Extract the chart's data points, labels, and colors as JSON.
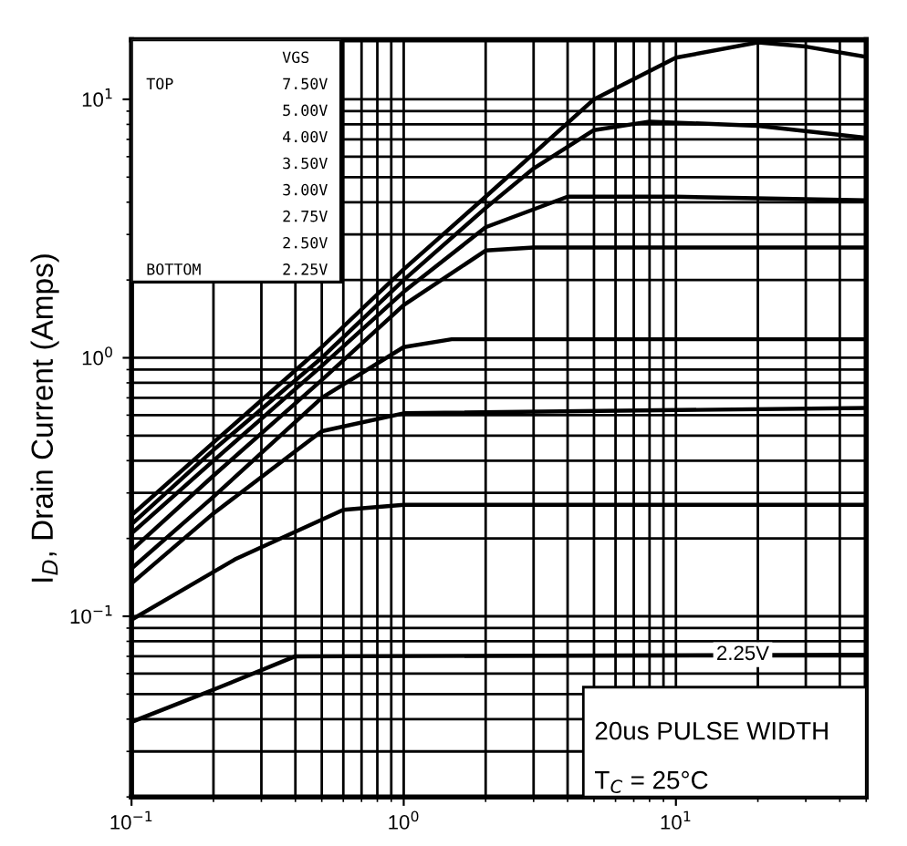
{
  "chart_data": {
    "type": "line",
    "ylabel": "I$_{D}$, Drain Current (Amps)",
    "log": "xy",
    "grid": true,
    "marker": "none",
    "line_style": "solid",
    "xlim": [
      0.1,
      50
    ],
    "ylim": [
      0.02,
      17
    ],
    "xticks": [
      {
        "value": 0.1,
        "label": "10$^{−1}$"
      },
      {
        "value": 1,
        "label": "10$^{0}$"
      },
      {
        "value": 10,
        "label": "10$^{1}$"
      }
    ],
    "yticks": [
      {
        "value": 0.1,
        "label": "10$^{−1}$"
      },
      {
        "value": 1,
        "label": "10$^{0}$"
      },
      {
        "value": 10,
        "label": "10$^{1}$"
      }
    ],
    "series": [
      {
        "color": "#000000",
        "x": [
          0.1,
          0.2,
          0.5,
          1,
          2,
          5,
          10,
          20,
          30,
          50
        ],
        "values": [
          0.246,
          0.47,
          1.1,
          2.2,
          4.2,
          10,
          14.5,
          16.6,
          16,
          14.6
        ]
      },
      {
        "color": "#000000",
        "x": [
          0.1,
          0.2,
          0.5,
          1,
          2,
          3,
          5,
          8,
          20,
          50
        ],
        "values": [
          0.227,
          0.44,
          1.0,
          2.0,
          3.8,
          5.4,
          7.6,
          8.2,
          7.9,
          7.1
        ]
      },
      {
        "color": "#000000",
        "x": [
          0.1,
          0.2,
          0.5,
          1,
          2,
          4,
          10,
          50
        ],
        "values": [
          0.209,
          0.4,
          0.93,
          1.8,
          3.2,
          4.2,
          4.2,
          4.07
        ]
      },
      {
        "color": "#000000",
        "x": [
          0.1,
          0.2,
          0.5,
          1,
          2,
          3,
          50
        ],
        "values": [
          0.18,
          0.35,
          0.82,
          1.6,
          2.6,
          2.67,
          2.67
        ]
      },
      {
        "color": "#000000",
        "x": [
          0.1,
          0.2,
          0.5,
          1,
          1.5,
          50
        ],
        "values": [
          0.153,
          0.29,
          0.7,
          1.1,
          1.18,
          1.18
        ]
      },
      {
        "color": "#000000",
        "x": [
          0.1,
          0.2,
          0.5,
          1,
          50
        ],
        "values": [
          0.134,
          0.25,
          0.52,
          0.61,
          0.64
        ]
      },
      {
        "color": "#000000",
        "x": [
          0.1,
          0.24,
          0.6,
          1,
          50
        ],
        "values": [
          0.097,
          0.166,
          0.258,
          0.27,
          0.27
        ]
      },
      {
        "color": "#000000",
        "x": [
          0.1,
          0.2,
          0.4,
          50
        ],
        "values": [
          0.039,
          0.052,
          0.07,
          0.071
        ]
      }
    ],
    "annotations": [
      "VGS",
      "TOP",
      "7.50V",
      "5.00V",
      "4.00V",
      "3.50V",
      "3.00V",
      "2.75V",
      "2.50V",
      "BOTTOM",
      "2.25V",
      "20us PULSE WIDTH",
      "T$_{C}$ = 25°C",
      {
        "text": "2.25V",
        "x": 17.6,
        "y": 0.071
      }
    ]
  }
}
